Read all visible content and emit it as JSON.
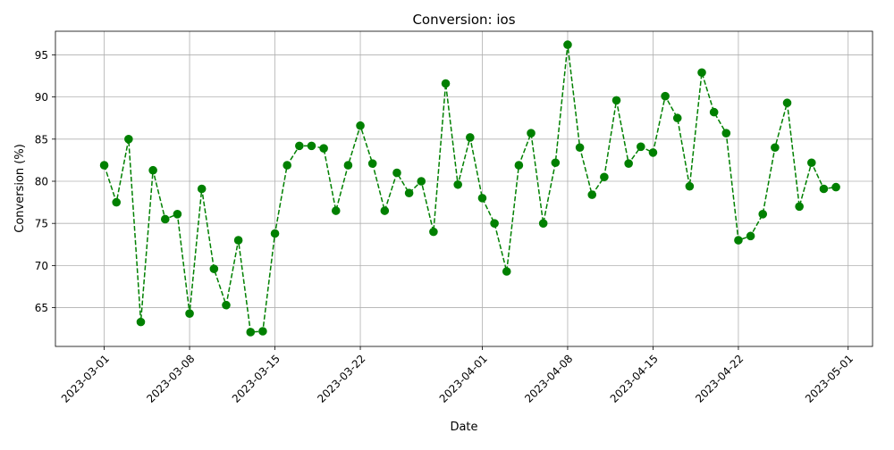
{
  "chart_data": {
    "type": "line",
    "title": "Conversion: ios",
    "xlabel": "Date",
    "ylabel": "Conversion (%)",
    "x_ticks": [
      "2023-03-01",
      "2023-03-08",
      "2023-03-15",
      "2023-03-22",
      "2023-04-01",
      "2023-04-08",
      "2023-04-15",
      "2023-04-22",
      "2023-05-01"
    ],
    "y_ticks": [
      65,
      70,
      75,
      80,
      85,
      90,
      95
    ],
    "xlim": [
      "2023-02-25",
      "2023-05-03"
    ],
    "ylim": [
      60.4,
      97.8
    ],
    "grid": true,
    "colors": {
      "series": "#008000"
    },
    "series": [
      {
        "x": [
          "2023-03-01",
          "2023-03-02",
          "2023-03-03",
          "2023-03-04",
          "2023-03-05",
          "2023-03-06",
          "2023-03-07",
          "2023-03-08",
          "2023-03-09",
          "2023-03-10",
          "2023-03-11",
          "2023-03-12",
          "2023-03-13",
          "2023-03-14",
          "2023-03-15",
          "2023-03-16",
          "2023-03-17",
          "2023-03-18",
          "2023-03-19",
          "2023-03-20",
          "2023-03-21",
          "2023-03-22",
          "2023-03-23",
          "2023-03-24",
          "2023-03-25",
          "2023-03-26",
          "2023-03-27",
          "2023-03-28",
          "2023-03-29",
          "2023-03-30",
          "2023-03-31",
          "2023-04-01",
          "2023-04-02",
          "2023-04-03",
          "2023-04-04",
          "2023-04-05",
          "2023-04-06",
          "2023-04-07",
          "2023-04-08",
          "2023-04-09",
          "2023-04-10",
          "2023-04-11",
          "2023-04-12",
          "2023-04-13",
          "2023-04-14",
          "2023-04-15",
          "2023-04-16",
          "2023-04-17",
          "2023-04-18",
          "2023-04-19",
          "2023-04-20",
          "2023-04-21",
          "2023-04-22",
          "2023-04-23",
          "2023-04-24",
          "2023-04-25",
          "2023-04-26",
          "2023-04-27",
          "2023-04-28",
          "2023-04-29",
          "2023-04-30"
        ],
        "values": [
          81.9,
          77.5,
          85.0,
          63.3,
          81.3,
          75.5,
          76.1,
          64.3,
          79.1,
          69.6,
          65.3,
          73.0,
          62.1,
          62.2,
          73.8,
          81.9,
          84.2,
          84.2,
          83.9,
          76.5,
          81.9,
          86.6,
          82.1,
          76.5,
          81.0,
          78.6,
          80.0,
          74.0,
          91.6,
          79.6,
          85.2,
          78.0,
          75.0,
          69.3,
          81.9,
          85.7,
          75.0,
          82.2,
          96.2,
          84.0,
          78.4,
          80.5,
          89.6,
          82.1,
          84.1,
          83.4,
          90.1,
          87.5,
          79.4,
          92.9,
          88.2,
          85.7,
          73.0,
          73.5,
          76.1,
          84.0,
          89.3,
          77.0,
          82.2,
          79.1,
          79.3
        ]
      }
    ]
  }
}
